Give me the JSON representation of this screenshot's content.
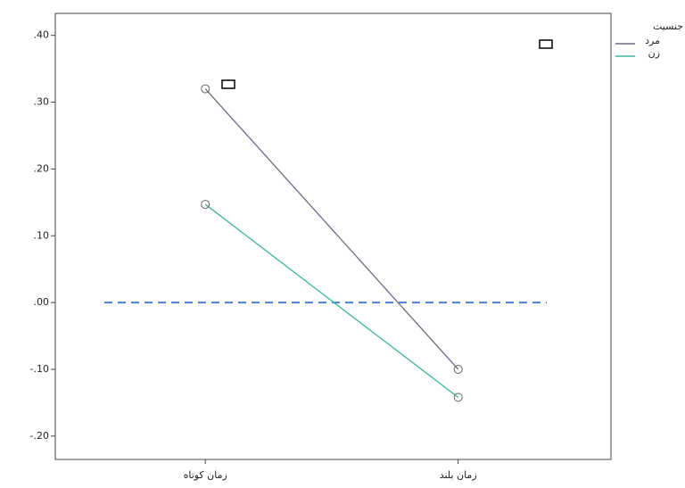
{
  "chart_data": {
    "type": "line",
    "categories": [
      "زمان کوتاه",
      "زمان بلند"
    ],
    "series": [
      {
        "name": "مرد",
        "color": "#6b6a86",
        "values": [
          0.32,
          -0.1
        ]
      },
      {
        "name": "زن",
        "color": "#3fb39b",
        "values": [
          0.147,
          -0.142
        ]
      }
    ],
    "legend_title": "جنسیت",
    "legend": "outside-top-right",
    "reference_line": {
      "value": 0,
      "color": "#4a7fd0"
    },
    "ylim": [
      -0.235,
      0.433
    ],
    "yticks": [
      {
        "value": 0.4,
        "label": ".40"
      },
      {
        "value": 0.3,
        "label": ".30"
      },
      {
        "value": 0.2,
        "label": ".20"
      },
      {
        "value": 0.1,
        "label": ".10"
      },
      {
        "value": 0,
        "label": ".00"
      },
      {
        "value": -0.1,
        "label": "-.10"
      },
      {
        "value": -0.2,
        "label": "-.20"
      }
    ]
  }
}
